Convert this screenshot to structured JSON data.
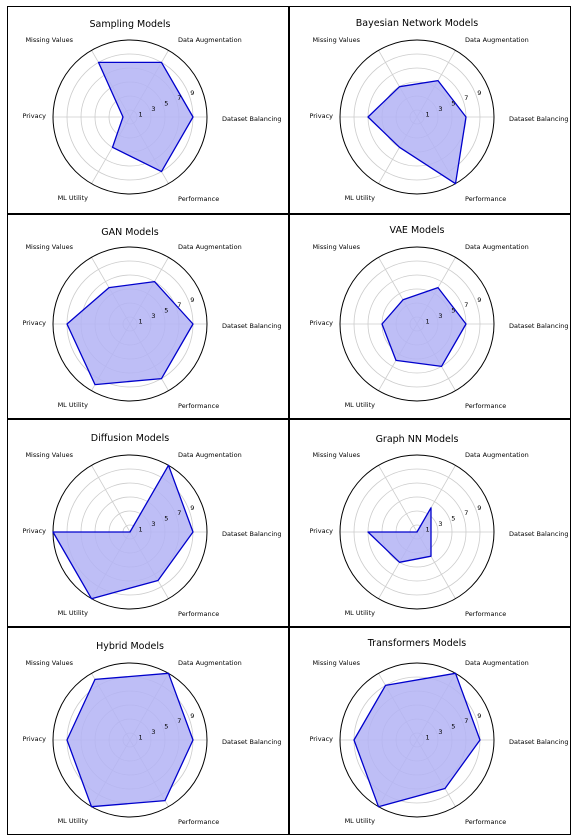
{
  "chart_data": [
    {
      "type": "radar",
      "title": "Sampling Models",
      "axes": [
        "Dataset Balancing",
        "Data Augmentation",
        "Missing Values",
        "Privacy",
        "ML Utility",
        "Performance"
      ],
      "values": [
        9,
        9,
        9,
        1,
        5,
        9
      ],
      "rticks": [
        "1",
        "3",
        "5",
        "7",
        "9"
      ],
      "rlim": [
        0,
        11
      ],
      "grid": true
    },
    {
      "type": "radar",
      "title": "Bayesian Network Models",
      "axes": [
        "Dataset Balancing",
        "Data Augmentation",
        "Missing Values",
        "Privacy",
        "ML Utility",
        "Performance"
      ],
      "values": [
        7,
        6,
        5,
        7,
        5,
        11
      ],
      "rticks": [
        "1",
        "3",
        "5",
        "7",
        "9"
      ],
      "rlim": [
        0,
        11
      ],
      "grid": true
    },
    {
      "type": "radar",
      "title": "GAN Models",
      "axes": [
        "Dataset Balancing",
        "Data Augmentation",
        "Missing Values",
        "Privacy",
        "ML Utility",
        "Performance"
      ],
      "values": [
        9,
        7,
        6,
        9,
        10,
        9
      ],
      "rticks": [
        "1",
        "3",
        "5",
        "7",
        "9"
      ],
      "rlim": [
        0,
        11
      ],
      "grid": true
    },
    {
      "type": "radar",
      "title": "VAE Models",
      "axes": [
        "Dataset Balancing",
        "Data Augmentation",
        "Missing Values",
        "Privacy",
        "ML Utility",
        "Performance"
      ],
      "values": [
        7,
        6,
        4,
        5,
        6,
        7
      ],
      "rticks": [
        "1",
        "3",
        "5",
        "7",
        "9"
      ],
      "rlim": [
        0,
        11
      ],
      "grid": true
    },
    {
      "type": "radar",
      "title": "Diffusion Models",
      "axes": [
        "Dataset Balancing",
        "Data Augmentation",
        "Missing Values",
        "Privacy",
        "ML Utility",
        "Performance"
      ],
      "values": [
        9,
        11,
        0,
        11,
        11,
        8
      ],
      "rticks": [
        "1",
        "3",
        "5",
        "7",
        "9"
      ],
      "rlim": [
        0,
        11
      ],
      "grid": true
    },
    {
      "type": "radar",
      "title": "Graph NN Models",
      "axes": [
        "Dataset Balancing",
        "Data Augmentation",
        "Missing Values",
        "Privacy",
        "ML Utility",
        "Performance"
      ],
      "values": [
        2,
        4,
        0,
        7,
        5,
        4
      ],
      "rticks": [
        "1",
        "3",
        "5",
        "7",
        "9"
      ],
      "rlim": [
        0,
        11
      ],
      "grid": true
    },
    {
      "type": "radar",
      "title": "Hybrid Models",
      "axes": [
        "Dataset Balancing",
        "Data Augmentation",
        "Missing Values",
        "Privacy",
        "ML Utility",
        "Performance"
      ],
      "values": [
        9,
        11,
        10,
        9,
        11,
        10
      ],
      "rticks": [
        "1",
        "3",
        "5",
        "7",
        "9"
      ],
      "rlim": [
        0,
        11
      ],
      "grid": true
    },
    {
      "type": "radar",
      "title": "Transformers Models",
      "axes": [
        "Dataset Balancing",
        "Data Augmentation",
        "Missing Values",
        "Privacy",
        "ML Utility",
        "Performance"
      ],
      "values": [
        9,
        11,
        9,
        9,
        11,
        8
      ],
      "rticks": [
        "1",
        "3",
        "5",
        "7",
        "9"
      ],
      "rlim": [
        0,
        11
      ],
      "grid": true
    }
  ],
  "colors": {
    "line": "#0000cc",
    "fill": "#b3b3f5",
    "grid": "#cccccc",
    "frame": "#000000"
  }
}
